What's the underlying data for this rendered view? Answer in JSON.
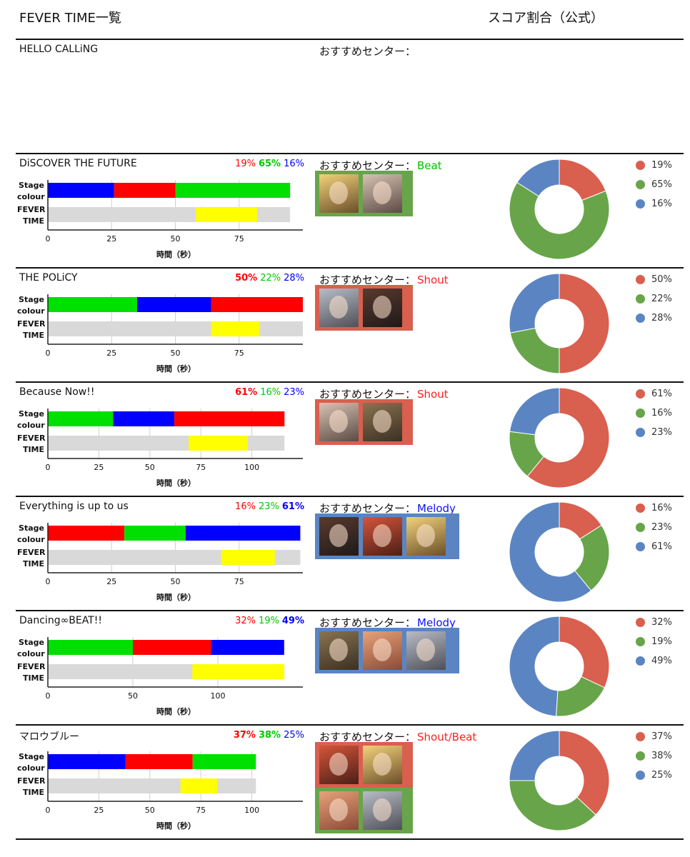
{
  "header": {
    "title": "FEVER TIME一覧",
    "score_title": "スコア割合（公式）"
  },
  "colors": {
    "red": "#ff0000",
    "green": "#00e000",
    "blue": "#0000ff",
    "fever": "#ffff00",
    "track": "#d9d9d9",
    "pie_red": "#d95f4e",
    "pie_green": "#68a54a",
    "pie_blue": "#5b85c2"
  },
  "labels": {
    "stage": "Stage",
    "colour": "colour",
    "fever": "FEVER",
    "time": "TIME",
    "xaxis": "時間（秒）",
    "center_prefix": "おすすめセンター："
  },
  "songs": [
    {
      "title": "HELLO CALLiNG",
      "center_type": "",
      "empty": true
    },
    {
      "title": "DiSCOVER THE FUTURE",
      "pcts": [
        "19%",
        "65%",
        "16%"
      ],
      "max_index": 1,
      "center_type": "Beat",
      "center_color": "green",
      "chart_data": {
        "type": "bar",
        "xlim": [
          0,
          100
        ],
        "ticks": [
          0,
          25,
          50,
          75
        ],
        "stage": [
          {
            "color": "blue",
            "start": 0,
            "end": 26
          },
          {
            "color": "red",
            "start": 26,
            "end": 50
          },
          {
            "color": "green",
            "start": 50,
            "end": 95
          }
        ],
        "fever": {
          "start": 58,
          "end": 82
        },
        "total": 95
      },
      "score": [
        19,
        65,
        16
      ],
      "portrait_rows": [
        {
          "frame": "green",
          "count": 2
        }
      ]
    },
    {
      "title": "THE POLiCY",
      "pcts": [
        "50%",
        "22%",
        "28%"
      ],
      "max_index": 0,
      "center_type": "Shout",
      "center_color": "red",
      "chart_data": {
        "type": "bar",
        "xlim": [
          0,
          100
        ],
        "ticks": [
          0,
          25,
          50,
          75
        ],
        "stage": [
          {
            "color": "green",
            "start": 0,
            "end": 35
          },
          {
            "color": "blue",
            "start": 35,
            "end": 64
          },
          {
            "color": "red",
            "start": 64,
            "end": 100
          }
        ],
        "fever": {
          "start": 64,
          "end": 83
        },
        "total": 100
      },
      "score": [
        50,
        22,
        28
      ],
      "portrait_rows": [
        {
          "frame": "red",
          "count": 2
        }
      ]
    },
    {
      "title": "Because Now!!",
      "pcts": [
        "61%",
        "16%",
        "23%"
      ],
      "max_index": 0,
      "center_type": "Shout",
      "center_color": "red",
      "chart_data": {
        "type": "bar",
        "xlim": [
          0,
          125
        ],
        "ticks": [
          0,
          25,
          50,
          75,
          100
        ],
        "stage": [
          {
            "color": "green",
            "start": 0,
            "end": 32
          },
          {
            "color": "blue",
            "start": 32,
            "end": 62
          },
          {
            "color": "red",
            "start": 62,
            "end": 116
          }
        ],
        "fever": {
          "start": 69,
          "end": 98
        },
        "total": 116
      },
      "score": [
        61,
        16,
        23
      ],
      "portrait_rows": [
        {
          "frame": "red",
          "count": 2
        }
      ]
    },
    {
      "title": "Everything is up to us",
      "pcts": [
        "16%",
        "23%",
        "61%"
      ],
      "max_index": 2,
      "center_type": "Melody",
      "center_color": "blue",
      "chart_data": {
        "type": "bar",
        "xlim": [
          0,
          100
        ],
        "ticks": [
          0,
          25,
          50,
          75
        ],
        "stage": [
          {
            "color": "red",
            "start": 0,
            "end": 30
          },
          {
            "color": "green",
            "start": 30,
            "end": 54
          },
          {
            "color": "blue",
            "start": 54,
            "end": 99
          }
        ],
        "fever": {
          "start": 68,
          "end": 89
        },
        "total": 99
      },
      "score": [
        16,
        23,
        61
      ],
      "portrait_rows": [
        {
          "frame": "blue",
          "count": 3
        }
      ]
    },
    {
      "title": "Dancing∞BEAT!!",
      "pcts": [
        "32%",
        "19%",
        "49%"
      ],
      "max_index": 2,
      "center_type": "Melody",
      "center_color": "blue",
      "chart_data": {
        "type": "bar",
        "xlim": [
          0,
          150
        ],
        "ticks": [
          0,
          50,
          100
        ],
        "stage": [
          {
            "color": "green",
            "start": 0,
            "end": 50
          },
          {
            "color": "red",
            "start": 50,
            "end": 96
          },
          {
            "color": "blue",
            "start": 96,
            "end": 139
          }
        ],
        "fever": {
          "start": 85,
          "end": 139
        },
        "total": 139
      },
      "score": [
        32,
        19,
        49
      ],
      "portrait_rows": [
        {
          "frame": "blue",
          "count": 3
        }
      ]
    },
    {
      "title": "マロウブルー",
      "pcts": [
        "37%",
        "38%",
        "25%"
      ],
      "max_index": 1,
      "bold_all": [
        0,
        1
      ],
      "center_type": "Shout/Beat",
      "center_color": "red",
      "chart_data": {
        "type": "bar",
        "xlim": [
          0,
          125
        ],
        "ticks": [
          0,
          25,
          50,
          75,
          100
        ],
        "stage": [
          {
            "color": "blue",
            "start": 0,
            "end": 38
          },
          {
            "color": "red",
            "start": 38,
            "end": 71
          },
          {
            "color": "green",
            "start": 71,
            "end": 102
          }
        ],
        "fever": {
          "start": 65,
          "end": 83
        },
        "total": 102
      },
      "score": [
        37,
        38,
        25
      ],
      "portrait_rows": [
        {
          "frame": "red",
          "count": 2
        },
        {
          "frame": "green",
          "count": 2
        }
      ]
    }
  ]
}
